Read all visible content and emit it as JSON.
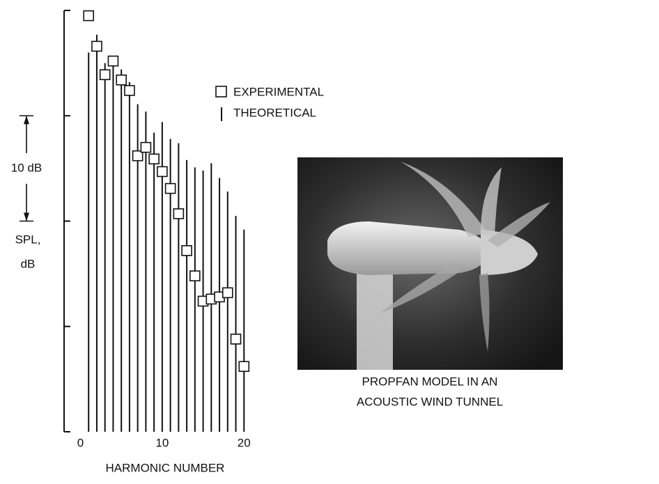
{
  "chart_data": {
    "type": "stem",
    "x": [
      1,
      2,
      3,
      4,
      5,
      6,
      7,
      8,
      9,
      10,
      11,
      12,
      13,
      14,
      15,
      16,
      17,
      18,
      19,
      20
    ],
    "series": [
      {
        "name": "EXPERIMENTAL",
        "marker": "square",
        "color": "#111111",
        "values": [
          39.5,
          36.6,
          33.9,
          35.2,
          33.4,
          32.4,
          26.2,
          27.0,
          25.9,
          24.7,
          23.1,
          20.7,
          17.2,
          14.8,
          12.4,
          12.6,
          12.8,
          13.2,
          8.8,
          6.2
        ]
      },
      {
        "name": "THEORETICAL",
        "marker": "stem",
        "color": "#111111",
        "values": [
          36.0,
          37.7,
          35.0,
          35.7,
          34.4,
          33.2,
          31.1,
          30.4,
          28.4,
          29.4,
          27.8,
          27.4,
          25.8,
          25.1,
          24.8,
          25.5,
          24.1,
          22.8,
          20.5,
          19.2
        ]
      }
    ],
    "xlabel": "HARMONIC NUMBER",
    "ylabel": [
      "SPL,",
      "dB"
    ],
    "xlim": [
      -2,
      21
    ],
    "xticks": [
      0,
      10,
      20
    ],
    "ylim": [
      0,
      40
    ],
    "yticks": [
      0,
      10,
      20,
      30,
      40
    ],
    "scale_bar": {
      "label": "10 dB",
      "range": [
        20,
        30
      ]
    },
    "caption": [
      "PROPFAN MODEL IN AN",
      "ACOUSTIC WIND TUNNEL"
    ]
  }
}
